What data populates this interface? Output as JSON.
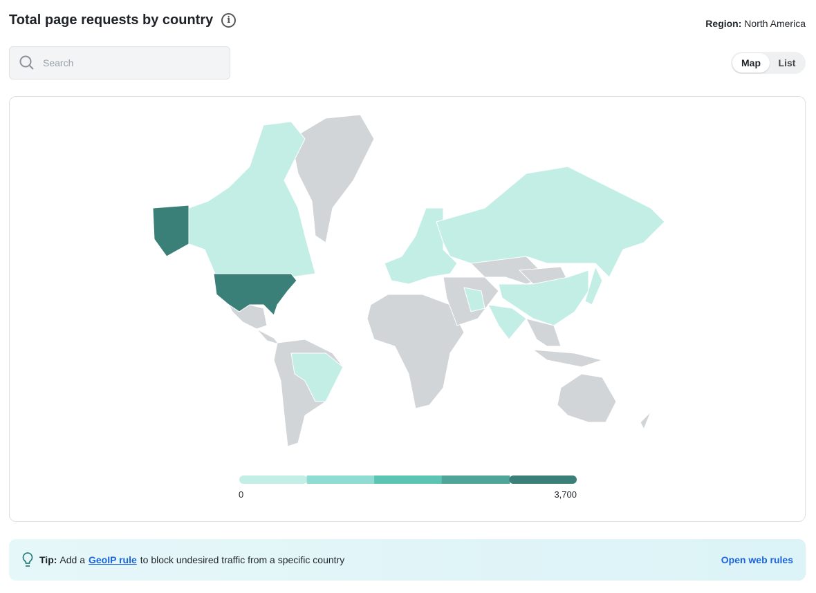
{
  "header": {
    "title": "Total page requests by country",
    "info_icon": "info-icon",
    "region_label": "Region:",
    "region_value": "North America"
  },
  "search": {
    "placeholder": "Search",
    "value": ""
  },
  "view_toggle": {
    "options": [
      "Map",
      "List"
    ],
    "selected": "Map"
  },
  "map": {
    "colors": {
      "none": "#d1d5d8",
      "level1": "#c3eee6",
      "level2": "#8edcd2",
      "level3": "#5bc4b2",
      "level4": "#4fa597",
      "level5": "#3a7f78"
    },
    "highlighted": {
      "United States": "level5",
      "Alaska (United States)": "level5",
      "Canada": "level1",
      "Brazil": "level1",
      "Russia": "level1",
      "China": "level1",
      "India": "level1",
      "Japan": "level1",
      "Europe": "level1",
      "Iran": "level1"
    },
    "legend": {
      "min_label": "0",
      "max_label": "3,700",
      "scale": [
        "#c3eee6",
        "#8edcd2",
        "#5bc4b2",
        "#4fa597",
        "#3a7f78"
      ]
    }
  },
  "tip": {
    "label": "Tip:",
    "text_before": "Add a",
    "link": "GeoIP rule",
    "text_after": "to block undesired traffic from a specific country",
    "action": "Open web rules"
  }
}
